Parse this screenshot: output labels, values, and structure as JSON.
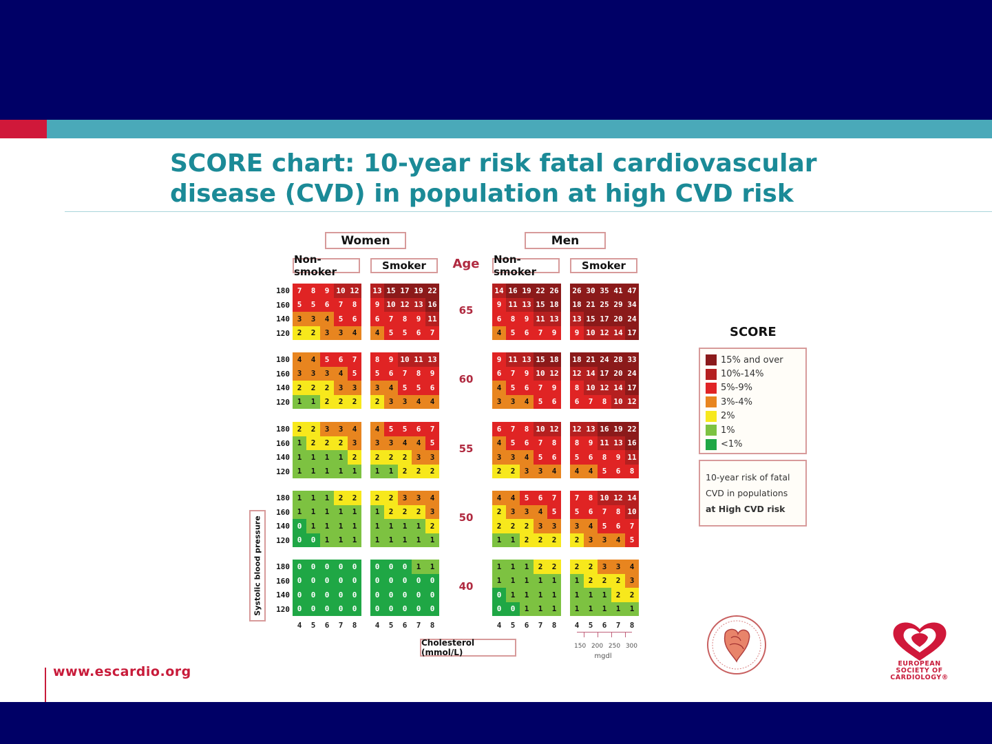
{
  "slide": {
    "title": "SCORE chart: 10-year risk fatal cardiovascular disease (CVD) in population at high CVD risk",
    "url": "www.escardio.org"
  },
  "chart": {
    "women_label": "Women",
    "men_label": "Men",
    "nonsmoker_label": "Non-smoker",
    "smoker_label": "Smoker",
    "age_label": "Age",
    "ylabel": "Systolic blood pressure",
    "xlabel": "Cholesterol (mmol/L)",
    "chol_ticks": [
      "4",
      "5",
      "6",
      "7",
      "8"
    ],
    "bp_ticks": [
      "180",
      "160",
      "140",
      "120"
    ],
    "mgdl_ticks": [
      "150",
      "200",
      "250",
      "300"
    ],
    "mgdl_unit": "mgdl"
  },
  "legend": {
    "title": "SCORE",
    "items": [
      {
        "label": "15% and over",
        "color": "#8b1a1a"
      },
      {
        "label": "10%-14%",
        "color": "#b52020"
      },
      {
        "label": "5%-9%",
        "color": "#e02424"
      },
      {
        "label": "3%-4%",
        "color": "#e8851f"
      },
      {
        "label": "2%",
        "color": "#f7e81c"
      },
      {
        "label": "1%",
        "color": "#7dc241"
      },
      {
        "label": "<1%",
        "color": "#1fa745"
      }
    ],
    "note_line1": "10-year risk of fatal",
    "note_line2": "CVD in populations",
    "note_line3": "at High CVD risk"
  },
  "logos": {
    "esc_text_1": "EUROPEAN",
    "esc_text_2": "SOCIETY OF",
    "esc_text_3": "CARDIOLOGY®"
  },
  "chart_data": {
    "type": "heatmap",
    "title": "SCORE chart: 10-year risk fatal cardiovascular disease (CVD) in population at high CVD risk",
    "xlabel": "Cholesterol (mmol/L)",
    "ylabel": "Systolic blood pressure",
    "x": [
      4,
      5,
      6,
      7,
      8
    ],
    "y": [
      180,
      160,
      140,
      120
    ],
    "ages": [
      65,
      60,
      55,
      50,
      40
    ],
    "groups": [
      "Women Non-smoker",
      "Women Smoker",
      "Men Non-smoker",
      "Men Smoker"
    ],
    "tables": {
      "65": {
        "women_nonsmoker": [
          [
            7,
            8,
            9,
            10,
            12
          ],
          [
            5,
            5,
            6,
            7,
            8
          ],
          [
            3,
            3,
            4,
            5,
            6
          ],
          [
            2,
            2,
            3,
            3,
            4
          ]
        ],
        "women_smoker": [
          [
            13,
            15,
            17,
            19,
            22
          ],
          [
            9,
            10,
            12,
            13,
            16
          ],
          [
            6,
            7,
            8,
            9,
            11
          ],
          [
            4,
            5,
            5,
            6,
            7
          ]
        ],
        "men_nonsmoker": [
          [
            14,
            16,
            19,
            22,
            26
          ],
          [
            9,
            11,
            13,
            15,
            18
          ],
          [
            6,
            8,
            9,
            11,
            13
          ],
          [
            4,
            5,
            6,
            7,
            9
          ]
        ],
        "men_smoker": [
          [
            26,
            30,
            35,
            41,
            47
          ],
          [
            18,
            21,
            25,
            29,
            34
          ],
          [
            13,
            15,
            17,
            20,
            24
          ],
          [
            9,
            10,
            12,
            14,
            17
          ]
        ]
      },
      "60": {
        "women_nonsmoker": [
          [
            4,
            4,
            5,
            6,
            7
          ],
          [
            3,
            3,
            3,
            4,
            5
          ],
          [
            2,
            2,
            2,
            3,
            3
          ],
          [
            1,
            1,
            2,
            2,
            2
          ]
        ],
        "women_smoker": [
          [
            8,
            9,
            10,
            11,
            13
          ],
          [
            5,
            6,
            7,
            8,
            9
          ],
          [
            3,
            4,
            5,
            5,
            6
          ],
          [
            2,
            3,
            3,
            4,
            4
          ]
        ],
        "men_nonsmoker": [
          [
            9,
            11,
            13,
            15,
            18
          ],
          [
            6,
            7,
            9,
            10,
            12
          ],
          [
            4,
            5,
            6,
            7,
            9
          ],
          [
            3,
            3,
            4,
            5,
            6
          ]
        ],
        "men_smoker": [
          [
            18,
            21,
            24,
            28,
            33
          ],
          [
            12,
            14,
            17,
            20,
            24
          ],
          [
            8,
            10,
            12,
            14,
            17
          ],
          [
            6,
            7,
            8,
            10,
            12
          ]
        ]
      },
      "55": {
        "women_nonsmoker": [
          [
            2,
            2,
            3,
            3,
            4
          ],
          [
            1,
            2,
            2,
            2,
            3
          ],
          [
            1,
            1,
            1,
            1,
            2
          ],
          [
            1,
            1,
            1,
            1,
            1
          ]
        ],
        "women_smoker": [
          [
            4,
            5,
            5,
            6,
            7
          ],
          [
            3,
            3,
            4,
            4,
            5
          ],
          [
            2,
            2,
            2,
            3,
            3
          ],
          [
            1,
            1,
            2,
            2,
            2
          ]
        ],
        "men_nonsmoker": [
          [
            6,
            7,
            8,
            10,
            12
          ],
          [
            4,
            5,
            6,
            7,
            8
          ],
          [
            3,
            3,
            4,
            5,
            6
          ],
          [
            2,
            2,
            3,
            3,
            4
          ]
        ],
        "men_smoker": [
          [
            12,
            13,
            16,
            19,
            22
          ],
          [
            8,
            9,
            11,
            13,
            16
          ],
          [
            5,
            6,
            8,
            9,
            11
          ],
          [
            4,
            4,
            5,
            6,
            8
          ]
        ]
      },
      "50": {
        "women_nonsmoker": [
          [
            1,
            1,
            1,
            2,
            2
          ],
          [
            1,
            1,
            1,
            1,
            1
          ],
          [
            0,
            1,
            1,
            1,
            1
          ],
          [
            0,
            0,
            1,
            1,
            1
          ]
        ],
        "women_smoker": [
          [
            2,
            2,
            3,
            3,
            4
          ],
          [
            1,
            2,
            2,
            2,
            3
          ],
          [
            1,
            1,
            1,
            1,
            2
          ],
          [
            1,
            1,
            1,
            1,
            1
          ]
        ],
        "men_nonsmoker": [
          [
            4,
            4,
            5,
            6,
            7
          ],
          [
            2,
            3,
            3,
            4,
            5
          ],
          [
            2,
            2,
            2,
            3,
            3
          ],
          [
            1,
            1,
            2,
            2,
            2
          ]
        ],
        "men_smoker": [
          [
            7,
            8,
            10,
            12,
            14
          ],
          [
            5,
            6,
            7,
            8,
            10
          ],
          [
            3,
            4,
            5,
            6,
            7
          ],
          [
            2,
            3,
            3,
            4,
            5
          ]
        ]
      },
      "40": {
        "women_nonsmoker": [
          [
            0,
            0,
            0,
            0,
            0
          ],
          [
            0,
            0,
            0,
            0,
            0
          ],
          [
            0,
            0,
            0,
            0,
            0
          ],
          [
            0,
            0,
            0,
            0,
            0
          ]
        ],
        "women_smoker": [
          [
            0,
            0,
            0,
            1,
            1
          ],
          [
            0,
            0,
            0,
            0,
            0
          ],
          [
            0,
            0,
            0,
            0,
            0
          ],
          [
            0,
            0,
            0,
            0,
            0
          ]
        ],
        "men_nonsmoker": [
          [
            1,
            1,
            1,
            2,
            2
          ],
          [
            1,
            1,
            1,
            1,
            1
          ],
          [
            0,
            1,
            1,
            1,
            1
          ],
          [
            0,
            0,
            1,
            1,
            1
          ]
        ],
        "men_smoker": [
          [
            2,
            2,
            3,
            3,
            4
          ],
          [
            1,
            2,
            2,
            2,
            3
          ],
          [
            1,
            1,
            1,
            2,
            2
          ],
          [
            1,
            1,
            1,
            1,
            1
          ]
        ]
      }
    },
    "risk_bands": [
      {
        "label": "15% and over",
        "min": 15,
        "color": "#8b1a1a"
      },
      {
        "label": "10%-14%",
        "min": 10,
        "color": "#b52020"
      },
      {
        "label": "5%-9%",
        "min": 5,
        "color": "#e02424"
      },
      {
        "label": "3%-4%",
        "min": 3,
        "color": "#e8851f"
      },
      {
        "label": "2%",
        "min": 2,
        "color": "#f7e81c"
      },
      {
        "label": "1%",
        "min": 1,
        "color": "#7dc241"
      },
      {
        "label": "<1%",
        "min": 0,
        "color": "#1fa745"
      }
    ]
  }
}
